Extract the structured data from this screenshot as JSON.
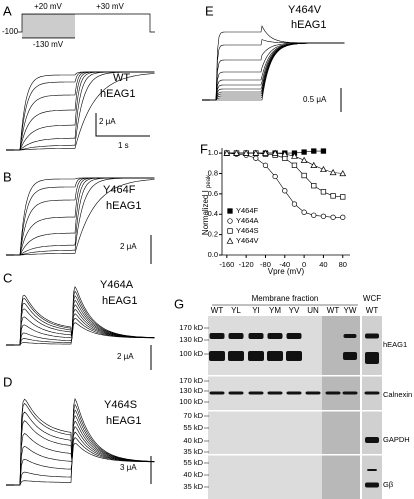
{
  "panels": {
    "A": {
      "letter": "A",
      "prepulse": "+20 mV",
      "test_pulse": "+30 mV",
      "holding": "-100",
      "prepulse_min": "-130 mV",
      "construct": "WT",
      "channel": "hEAG1",
      "scale_current": "2 μA",
      "scale_time": "1 s"
    },
    "B": {
      "letter": "B",
      "construct": "Y464F",
      "channel": "hEAG1",
      "scale_current": "2 μA"
    },
    "C": {
      "letter": "C",
      "construct": "Y464A",
      "channel": "hEAG1",
      "scale_current": "2 μA"
    },
    "D": {
      "letter": "D",
      "construct": "Y464S",
      "channel": "hEAG1",
      "scale_current": "3 μA"
    },
    "E": {
      "letter": "E",
      "construct": "Y464V",
      "channel": "hEAG1",
      "scale_current": "0.5 μA"
    },
    "F": {
      "letter": "F"
    },
    "G": {
      "letter": "G",
      "group": "Membrane fraction",
      "wcf": "WCF",
      "lanes": [
        "WT",
        "YL",
        "YI",
        "YM",
        "YV",
        "UN",
        "WT",
        "YW",
        "WT"
      ],
      "mw": [
        "170 kD",
        "130 kD",
        "100 kD",
        "170 kD",
        "130 kD",
        "100 kD",
        "70 kD",
        "55 kD",
        "40 kD",
        "35 kD",
        "55 kD",
        "40 kD",
        "35 kD"
      ],
      "bands": [
        "hEAG1",
        "Calnexin",
        "GAPDH",
        "Gβ"
      ]
    }
  },
  "chart_data": {
    "type": "scatter",
    "ylabel": "Normalized I",
    "ylabel_sub": "peak",
    "xlabel": "Vpre (mV)",
    "x": [
      -160,
      -140,
      -120,
      -100,
      -80,
      -60,
      -40,
      -20,
      0,
      20,
      40,
      60,
      80
    ],
    "xlim": [
      -170,
      95
    ],
    "ylim": [
      0,
      1.05
    ],
    "xticks": [
      -160,
      -120,
      -80,
      -40,
      0,
      40,
      80
    ],
    "yticks": [
      {
        "value": 0,
        "label": "0.0"
      },
      {
        "value": 0.2,
        "label": "0.2"
      },
      {
        "value": 0.4,
        "label": "0.4"
      },
      {
        "value": 0.6,
        "label": "0.6"
      },
      {
        "value": 0.8,
        "label": "0.8"
      },
      {
        "value": 1,
        "label": "1.0"
      }
    ],
    "legend": "lower-left",
    "series": [
      {
        "name": "Y464F",
        "marker": "filled-square",
        "color": "#000000",
        "values": [
          1,
          1,
          1,
          1,
          1,
          1,
          1,
          1,
          1.01,
          1.02,
          1.02,
          null,
          null
        ]
      },
      {
        "name": "Y464A",
        "marker": "circle",
        "color": "#000000",
        "values": [
          1,
          0.99,
          0.98,
          0.95,
          0.88,
          0.77,
          0.63,
          0.5,
          0.42,
          0.39,
          0.38,
          0.37,
          0.37
        ]
      },
      {
        "name": "Y464S",
        "marker": "square",
        "color": "#000000",
        "values": [
          1,
          1,
          1,
          1,
          0.99,
          0.98,
          0.95,
          0.88,
          0.78,
          0.68,
          0.62,
          0.58,
          0.57
        ]
      },
      {
        "name": "Y464V",
        "marker": "triangle",
        "color": "#000000",
        "values": [
          1,
          1,
          1,
          1,
          1,
          1,
          0.99,
          0.97,
          0.93,
          0.88,
          0.84,
          0.81,
          0.8
        ]
      }
    ]
  }
}
